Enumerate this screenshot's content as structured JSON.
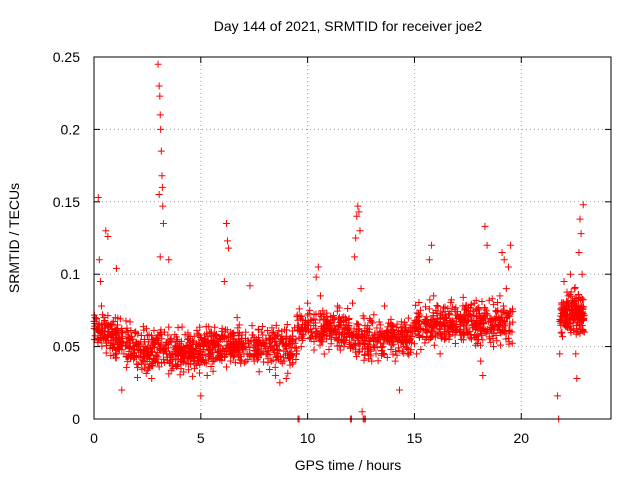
{
  "chart_data": {
    "type": "scatter",
    "title": "Day 144 of 2021, SRMTID for receiver joe2",
    "xlabel": "GPS time / hours",
    "ylabel": "SRMTID / TECUs",
    "xlim": [
      0,
      24.2
    ],
    "ylim": [
      0,
      0.25
    ],
    "x_ticks": [
      0,
      5,
      10,
      15,
      20
    ],
    "x_tick_labels": [
      "0",
      "5",
      "10",
      "15",
      "20"
    ],
    "y_ticks": [
      0,
      0.05,
      0.1,
      0.15,
      0.2,
      0.25
    ],
    "y_tick_labels": [
      "0",
      "0.05",
      "0.1",
      "0.15",
      "0.2",
      "0.25"
    ],
    "grid": true,
    "marker": "+",
    "color": "#ff0000",
    "series": [
      {
        "name": "SRMTID",
        "points": [
          [
            0.05,
            0.07
          ],
          [
            0.1,
            0.062
          ],
          [
            0.15,
            0.055
          ],
          [
            0.2,
            0.153
          ],
          [
            0.25,
            0.11
          ],
          [
            0.3,
            0.095
          ],
          [
            0.35,
            0.078
          ],
          [
            0.4,
            0.072
          ],
          [
            0.5,
            0.068
          ],
          [
            0.55,
            0.13
          ],
          [
            0.65,
            0.126
          ],
          [
            0.7,
            0.06
          ],
          [
            0.8,
            0.058
          ],
          [
            0.9,
            0.052
          ],
          [
            1.0,
            0.07
          ],
          [
            1.05,
            0.104
          ],
          [
            1.1,
            0.065
          ],
          [
            1.2,
            0.048
          ],
          [
            1.3,
            0.02
          ],
          [
            1.4,
            0.045
          ],
          [
            1.5,
            0.06
          ],
          [
            1.6,
            0.058
          ],
          [
            1.7,
            0.042
          ],
          [
            1.8,
            0.055
          ],
          [
            1.9,
            0.048
          ],
          [
            2.0,
            0.038
          ],
          [
            2.1,
            0.052
          ],
          [
            2.2,
            0.046
          ],
          [
            2.3,
            0.04
          ],
          [
            2.4,
            0.05
          ],
          [
            2.5,
            0.044
          ],
          [
            2.6,
            0.036
          ],
          [
            2.7,
            0.028
          ],
          [
            2.8,
            0.041
          ],
          [
            2.9,
            0.055
          ],
          [
            3.0,
            0.245
          ],
          [
            3.05,
            0.23
          ],
          [
            3.08,
            0.223
          ],
          [
            3.1,
            0.21
          ],
          [
            3.12,
            0.2
          ],
          [
            3.15,
            0.185
          ],
          [
            3.18,
            0.168
          ],
          [
            3.2,
            0.16
          ],
          [
            3.22,
            0.147
          ],
          [
            3.25,
            0.135
          ],
          [
            3.05,
            0.155
          ],
          [
            3.1,
            0.112
          ],
          [
            3.3,
            0.06
          ],
          [
            3.4,
            0.045
          ],
          [
            3.5,
            0.11
          ],
          [
            3.6,
            0.04
          ],
          [
            3.7,
            0.035
          ],
          [
            3.8,
            0.048
          ],
          [
            3.9,
            0.055
          ],
          [
            4.0,
            0.052
          ],
          [
            4.1,
            0.045
          ],
          [
            4.2,
            0.05
          ],
          [
            4.3,
            0.038
          ],
          [
            4.4,
            0.058
          ],
          [
            4.5,
            0.042
          ],
          [
            4.6,
            0.048
          ],
          [
            4.7,
            0.035
          ],
          [
            4.8,
            0.052
          ],
          [
            4.9,
            0.045
          ],
          [
            5.0,
            0.016
          ],
          [
            5.1,
            0.05
          ],
          [
            5.2,
            0.055
          ],
          [
            5.3,
            0.03
          ],
          [
            5.4,
            0.048
          ],
          [
            5.5,
            0.06
          ],
          [
            5.6,
            0.042
          ],
          [
            5.7,
            0.058
          ],
          [
            5.8,
            0.05
          ],
          [
            5.9,
            0.045
          ],
          [
            6.0,
            0.055
          ],
          [
            6.1,
            0.095
          ],
          [
            6.2,
            0.135
          ],
          [
            6.25,
            0.123
          ],
          [
            6.3,
            0.118
          ],
          [
            6.4,
            0.06
          ],
          [
            6.5,
            0.055
          ],
          [
            6.6,
            0.048
          ],
          [
            6.7,
            0.07
          ],
          [
            6.8,
            0.065
          ],
          [
            6.9,
            0.05
          ],
          [
            7.0,
            0.052
          ],
          [
            7.1,
            0.06
          ],
          [
            7.2,
            0.045
          ],
          [
            7.3,
            0.092
          ],
          [
            7.4,
            0.058
          ],
          [
            7.5,
            0.04
          ],
          [
            7.6,
            0.055
          ],
          [
            7.7,
            0.062
          ],
          [
            7.8,
            0.045
          ],
          [
            7.9,
            0.058
          ],
          [
            8.0,
            0.05
          ],
          [
            8.1,
            0.045
          ],
          [
            8.2,
            0.055
          ],
          [
            8.3,
            0.04
          ],
          [
            8.4,
            0.06
          ],
          [
            8.5,
            0.03
          ],
          [
            8.6,
            0.048
          ],
          [
            8.7,
            0.025
          ],
          [
            8.8,
            0.055
          ],
          [
            8.9,
            0.04
          ],
          [
            9.0,
            0.028
          ],
          [
            9.1,
            0.052
          ],
          [
            9.2,
            0.045
          ],
          [
            9.3,
            0.038
          ],
          [
            9.55,
            0.0
          ],
          [
            9.6,
            0.0
          ],
          [
            9.7,
            0.05
          ],
          [
            9.8,
            0.058
          ],
          [
            9.9,
            0.062
          ],
          [
            10.0,
            0.08
          ],
          [
            10.1,
            0.075
          ],
          [
            10.2,
            0.068
          ],
          [
            10.3,
            0.072
          ],
          [
            10.4,
            0.098
          ],
          [
            10.5,
            0.105
          ],
          [
            10.6,
            0.085
          ],
          [
            10.7,
            0.06
          ],
          [
            10.8,
            0.058
          ],
          [
            10.9,
            0.065
          ],
          [
            11.0,
            0.048
          ],
          [
            11.1,
            0.052
          ],
          [
            11.2,
            0.07
          ],
          [
            11.3,
            0.06
          ],
          [
            11.4,
            0.078
          ],
          [
            11.5,
            0.065
          ],
          [
            11.6,
            0.055
          ],
          [
            11.7,
            0.05
          ],
          [
            11.8,
            0.068
          ],
          [
            11.9,
            0.062
          ],
          [
            12.0,
            0.0
          ],
          [
            12.05,
            0.0
          ],
          [
            12.1,
            0.08
          ],
          [
            12.2,
            0.112
          ],
          [
            12.25,
            0.125
          ],
          [
            12.3,
            0.14
          ],
          [
            12.35,
            0.147
          ],
          [
            12.4,
            0.143
          ],
          [
            12.45,
            0.13
          ],
          [
            12.5,
            0.09
          ],
          [
            12.55,
            0.005
          ],
          [
            12.6,
            0.0
          ],
          [
            12.65,
            0.0
          ],
          [
            12.7,
            0.0
          ],
          [
            12.8,
            0.05
          ],
          [
            12.9,
            0.062
          ],
          [
            13.0,
            0.04
          ],
          [
            13.1,
            0.072
          ],
          [
            13.2,
            0.045
          ],
          [
            13.3,
            0.058
          ],
          [
            13.4,
            0.065
          ],
          [
            13.5,
            0.05
          ],
          [
            13.6,
            0.078
          ],
          [
            13.7,
            0.06
          ],
          [
            13.8,
            0.055
          ],
          [
            13.9,
            0.048
          ],
          [
            14.0,
            0.062
          ],
          [
            14.1,
            0.04
          ],
          [
            14.2,
            0.055
          ],
          [
            14.3,
            0.02
          ],
          [
            14.4,
            0.058
          ],
          [
            14.5,
            0.05
          ],
          [
            14.6,
            0.065
          ],
          [
            14.7,
            0.048
          ],
          [
            14.8,
            0.055
          ],
          [
            14.9,
            0.06
          ],
          [
            15.0,
            0.052
          ],
          [
            15.1,
            0.045
          ],
          [
            15.2,
            0.058
          ],
          [
            15.3,
            0.048
          ],
          [
            15.4,
            0.062
          ],
          [
            15.5,
            0.055
          ],
          [
            15.6,
            0.068
          ],
          [
            15.7,
            0.11
          ],
          [
            15.8,
            0.12
          ],
          [
            15.9,
            0.085
          ],
          [
            16.0,
            0.075
          ],
          [
            16.1,
            0.06
          ],
          [
            16.2,
            0.045
          ],
          [
            16.3,
            0.058
          ],
          [
            16.4,
            0.055
          ],
          [
            16.5,
            0.068
          ],
          [
            16.6,
            0.072
          ],
          [
            16.7,
            0.065
          ],
          [
            16.8,
            0.06
          ],
          [
            16.9,
            0.058
          ],
          [
            17.0,
            0.062
          ],
          [
            17.1,
            0.07
          ],
          [
            17.2,
            0.055
          ],
          [
            17.3,
            0.065
          ],
          [
            17.4,
            0.078
          ],
          [
            17.5,
            0.06
          ],
          [
            17.6,
            0.072
          ],
          [
            17.7,
            0.065
          ],
          [
            17.8,
            0.08
          ],
          [
            17.9,
            0.068
          ],
          [
            18.0,
            0.055
          ],
          [
            18.1,
            0.04
          ],
          [
            18.2,
            0.03
          ],
          [
            18.3,
            0.133
          ],
          [
            18.4,
            0.12
          ],
          [
            18.5,
            0.082
          ],
          [
            18.6,
            0.062
          ],
          [
            18.7,
            0.05
          ],
          [
            18.8,
            0.068
          ],
          [
            18.9,
            0.075
          ],
          [
            19.0,
            0.085
          ],
          [
            19.1,
            0.115
          ],
          [
            19.2,
            0.11
          ],
          [
            19.3,
            0.09
          ],
          [
            19.4,
            0.105
          ],
          [
            19.5,
            0.12
          ],
          [
            21.7,
            0.016
          ],
          [
            21.75,
            0.0
          ],
          [
            21.8,
            0.045
          ],
          [
            21.9,
            0.08
          ],
          [
            22.0,
            0.095
          ],
          [
            22.1,
            0.07
          ],
          [
            22.2,
            0.085
          ],
          [
            22.3,
            0.1
          ],
          [
            22.4,
            0.075
          ],
          [
            22.5,
            0.09
          ],
          [
            22.55,
            0.045
          ],
          [
            22.6,
            0.028
          ],
          [
            22.65,
            0.06
          ],
          [
            22.7,
            0.115
          ],
          [
            22.75,
            0.138
          ],
          [
            22.8,
            0.128
          ],
          [
            22.85,
            0.1
          ],
          [
            22.9,
            0.148
          ],
          [
            22.95,
            0.06
          ]
        ]
      }
    ]
  }
}
